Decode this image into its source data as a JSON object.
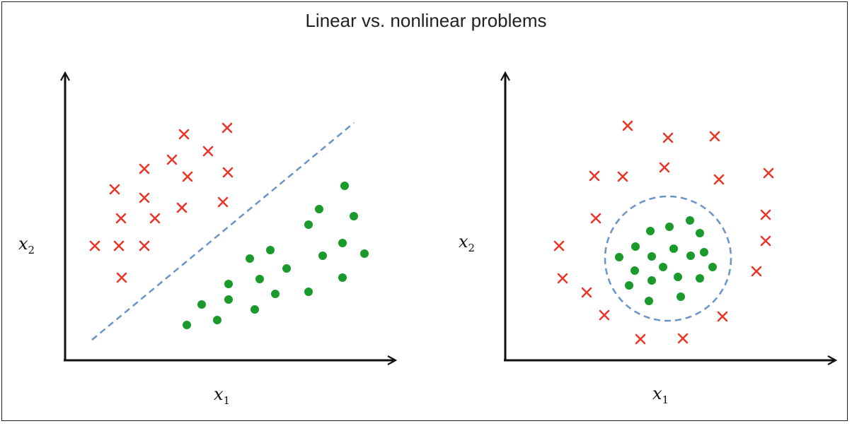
{
  "title": "Linear vs. nonlinear problems",
  "colors": {
    "cross": "#e8382a",
    "dot": "#1a9a2a",
    "boundary": "#6a93c9",
    "axis": "#111111"
  },
  "panels": [
    {
      "id": "linear",
      "x_axis_label": "x",
      "x_axis_subscript": "1",
      "y_axis_label": "x",
      "y_axis_subscript": "2",
      "boundary_shape": "line"
    },
    {
      "id": "nonlinear",
      "x_axis_label": "x",
      "x_axis_subscript": "1",
      "y_axis_label": "x",
      "y_axis_subscript": "2",
      "boundary_shape": "circle"
    }
  ]
}
